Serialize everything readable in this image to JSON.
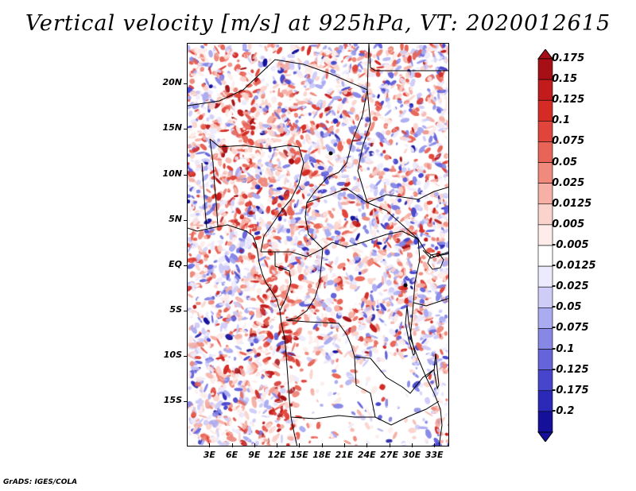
{
  "title": "Vertical velocity [m/s] at 925hPa, VT: 2020012615",
  "credit": "GrADS: IGES/COLA",
  "map": {
    "lat_range": [
      -20,
      24.5
    ],
    "lon_range": [
      0,
      35
    ],
    "lat_ticks": [
      {
        "value": 20,
        "label": "20N"
      },
      {
        "value": 15,
        "label": "15N"
      },
      {
        "value": 10,
        "label": "10N"
      },
      {
        "value": 5,
        "label": "5N"
      },
      {
        "value": 0,
        "label": "EQ"
      },
      {
        "value": -5,
        "label": "5S"
      },
      {
        "value": -10,
        "label": "10S"
      },
      {
        "value": -15,
        "label": "15S"
      }
    ],
    "lon_ticks": [
      {
        "value": 3,
        "label": "3E"
      },
      {
        "value": 6,
        "label": "6E"
      },
      {
        "value": 9,
        "label": "9E"
      },
      {
        "value": 12,
        "label": "12E"
      },
      {
        "value": 15,
        "label": "15E"
      },
      {
        "value": 18,
        "label": "18E"
      },
      {
        "value": 21,
        "label": "21E"
      },
      {
        "value": 24,
        "label": "24E"
      },
      {
        "value": 27,
        "label": "27E"
      },
      {
        "value": 30,
        "label": "30E"
      },
      {
        "value": 33,
        "label": "33E"
      }
    ]
  },
  "colorbar": {
    "levels": [
      {
        "label": "0.175",
        "color": "#a50f15"
      },
      {
        "label": "0.15",
        "color": "#c21b1b"
      },
      {
        "label": "0.125",
        "color": "#d42b25"
      },
      {
        "label": "0.1",
        "color": "#e0443a"
      },
      {
        "label": "0.075",
        "color": "#e86456"
      },
      {
        "label": "0.05",
        "color": "#ef8a7c"
      },
      {
        "label": "0.025",
        "color": "#f6b0a6"
      },
      {
        "label": "0.0125",
        "color": "#fad3cc"
      },
      {
        "label": "0.005",
        "color": "#fdecea"
      },
      {
        "label": "-0.005",
        "color": "#ffffff"
      },
      {
        "label": "-0.0125",
        "color": "#eceafd"
      },
      {
        "label": "-0.025",
        "color": "#cfcdf8"
      },
      {
        "label": "-0.05",
        "color": "#ababf1"
      },
      {
        "label": "-0.075",
        "color": "#8787e6"
      },
      {
        "label": "-0.1",
        "color": "#6564da"
      },
      {
        "label": "-0.125",
        "color": "#4645cc"
      },
      {
        "label": "-0.175",
        "color": "#2b29b8"
      },
      {
        "label": "-0.2",
        "color": "#14109a"
      }
    ],
    "top_arrow_color": "#a50f15",
    "bottom_arrow_color": "#14109a"
  }
}
